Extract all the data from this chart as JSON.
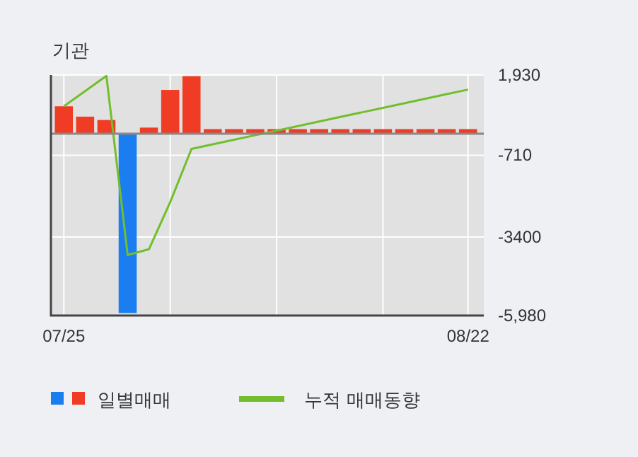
{
  "chart_data": {
    "type": "bar",
    "title": "기관",
    "categories": [
      "07/25",
      null,
      null,
      null,
      null,
      null,
      null,
      null,
      null,
      null,
      null,
      null,
      null,
      null,
      null,
      null,
      null,
      null,
      null,
      "08/22"
    ],
    "series": [
      {
        "name": "일별매매",
        "colors": [
          "#f03c24",
          "#f03c24",
          "#f03c24",
          "#1a7ef0",
          "#f03c24",
          "#f03c24",
          "#f03c24",
          "#f03c24",
          "#f03c24",
          "#f03c24",
          "#f03c24",
          "#f03c24",
          "#f03c24",
          "#f03c24",
          "#f03c24",
          "#f03c24",
          "#f03c24",
          "#f03c24",
          "#f03c24",
          "#f03c24"
        ],
        "values": [
          900,
          560,
          450,
          -5900,
          200,
          1440,
          1890,
          150,
          150,
          150,
          150,
          150,
          150,
          150,
          150,
          150,
          150,
          150,
          150,
          150
        ]
      },
      {
        "name": "누적 매매동향",
        "type": "line",
        "color": "#72be2c",
        "values": [
          900,
          1400,
          1900,
          -3990,
          -3800,
          -2250,
          -500,
          -350,
          -200,
          -50,
          100,
          250,
          400,
          550,
          700,
          850,
          1000,
          1150,
          1300,
          1450
        ]
      }
    ],
    "ylim": [
      -5980,
      1930
    ],
    "yticks": [
      {
        "value": 1930,
        "label": "1,930"
      },
      -710,
      -3400,
      {
        "value": -5980,
        "label": "-5,980"
      }
    ],
    "grid": true,
    "legend": "bottom"
  }
}
